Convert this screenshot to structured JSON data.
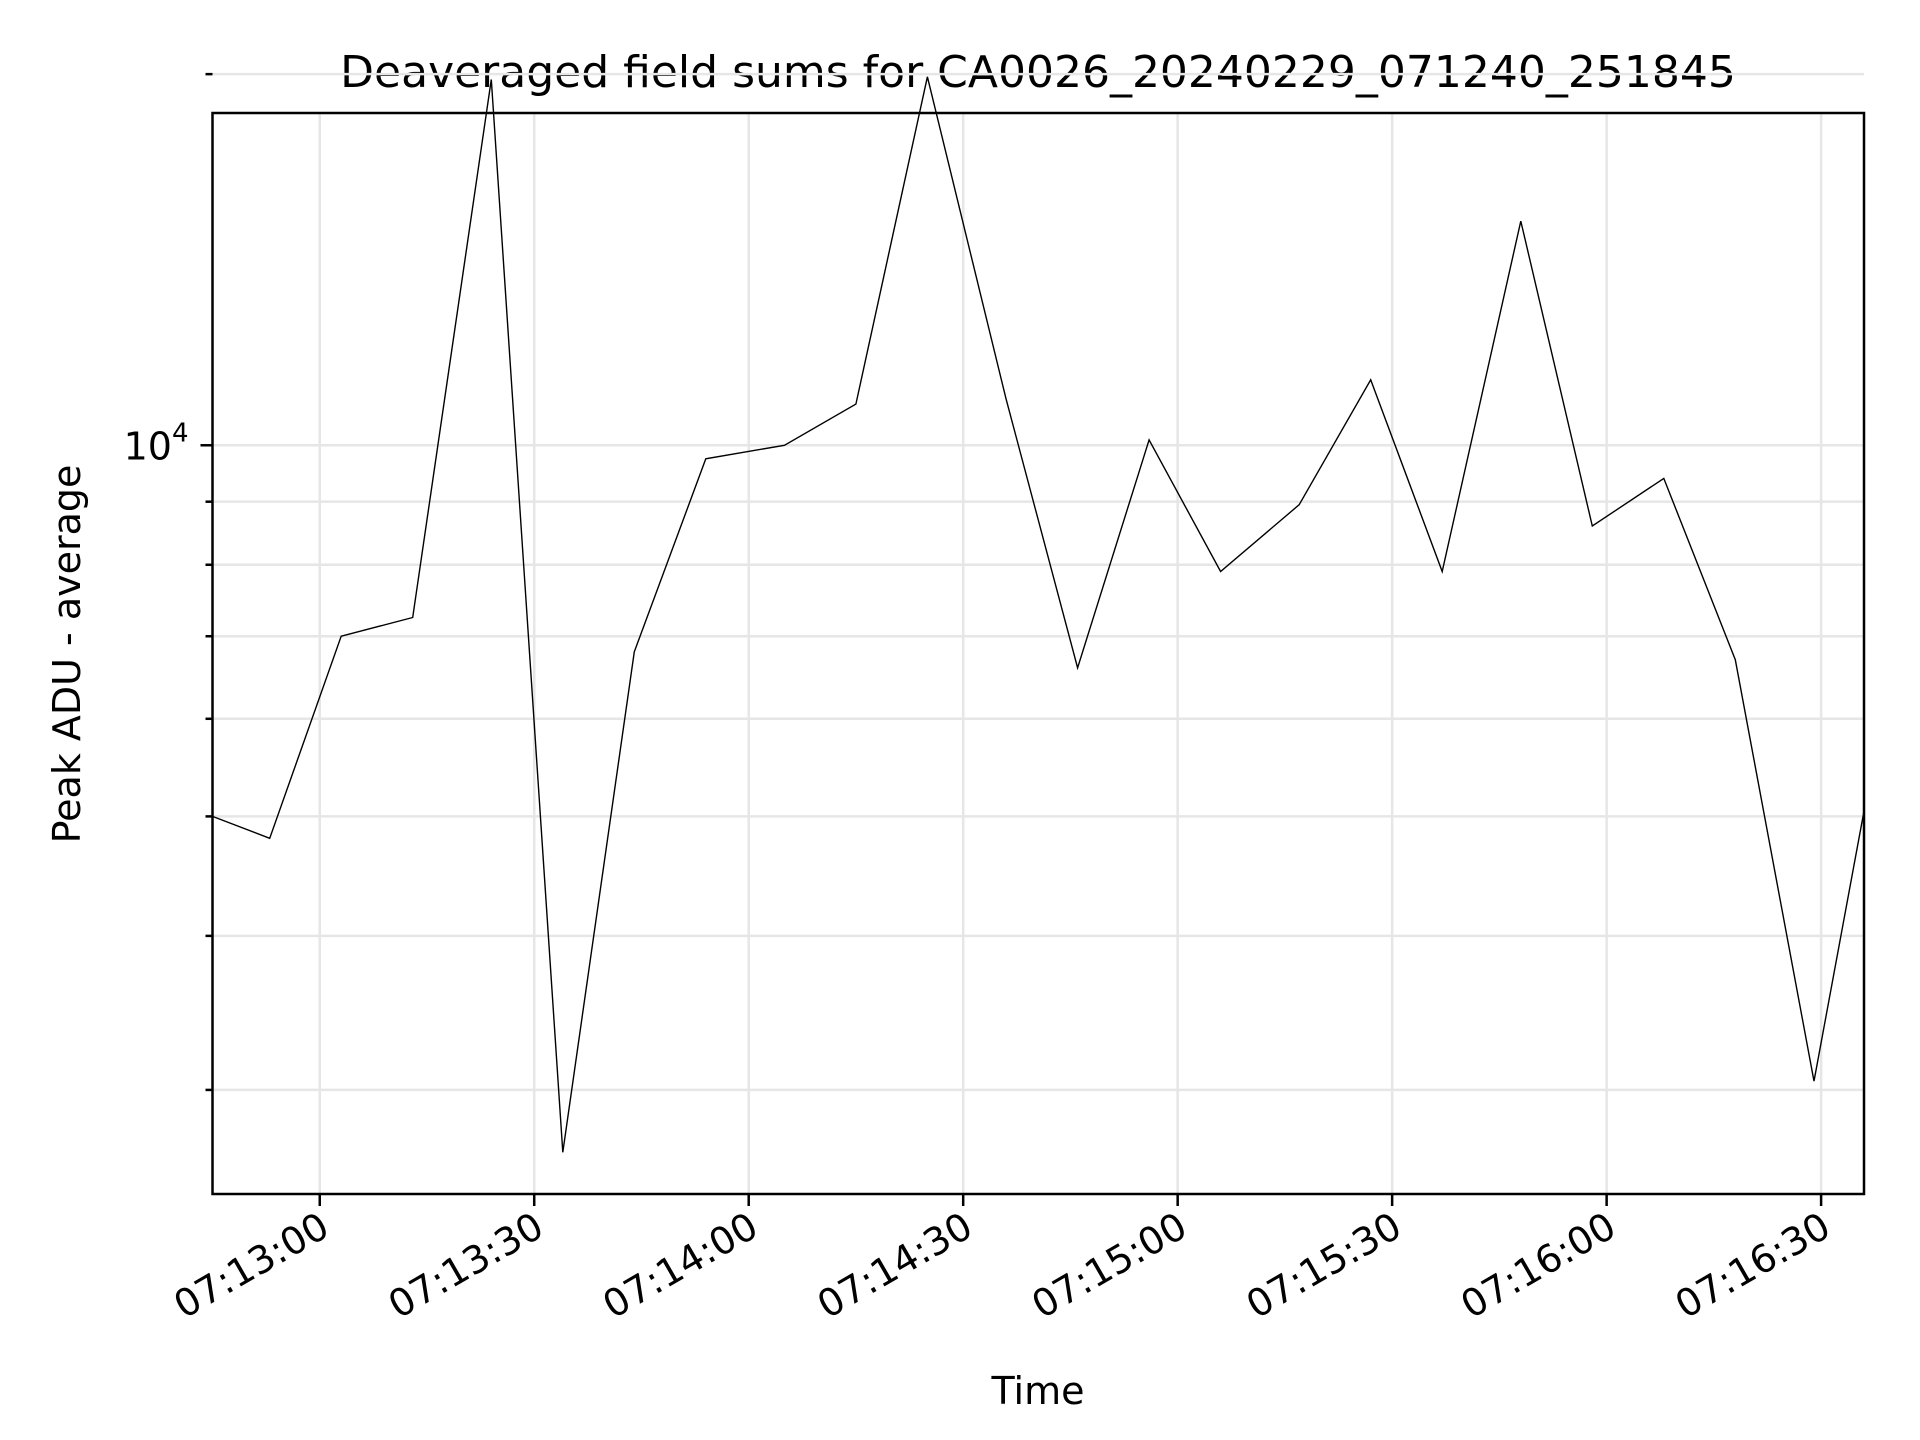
{
  "chart_data": {
    "type": "line",
    "title": "Deaveraged field sums for CA0026_20240229_071240_251845",
    "xlabel": "Time",
    "ylabel": "Peak ADU - average",
    "yscale": "log",
    "grid": true,
    "xlim": [
      "07:12:45",
      "07:16:36"
    ],
    "ylim": [
      2470,
      18600
    ],
    "x_ticks": [
      "07:13:00",
      "07:13:30",
      "07:14:00",
      "07:14:30",
      "07:15:00",
      "07:15:30",
      "07:16:00",
      "07:16:30"
    ],
    "y_major_ticks": [
      {
        "value": 10000,
        "base": "10",
        "exp": "4"
      }
    ],
    "y_minor_ticks": [
      3000,
      4000,
      5000,
      6000,
      7000,
      8000,
      9000,
      20000
    ],
    "series": [
      {
        "color": "#000000",
        "x": [
          "07:12:45",
          "07:12:53",
          "07:13:03",
          "07:13:13",
          "07:13:24",
          "07:13:34",
          "07:13:44",
          "07:13:54",
          "07:14:05",
          "07:14:15",
          "07:14:25",
          "07:14:36",
          "07:14:46",
          "07:14:56",
          "07:15:06",
          "07:15:17",
          "07:15:27",
          "07:15:37",
          "07:15:48",
          "07:15:58",
          "07:16:08",
          "07:16:18",
          "07:16:29",
          "07:16:36"
        ],
        "y": [
          5000,
          4800,
          7000,
          7250,
          19800,
          2670,
          6800,
          9750,
          10000,
          10800,
          19900,
          10900,
          6600,
          10100,
          7900,
          8950,
          11300,
          7900,
          15200,
          8600,
          9400,
          6700,
          3050,
          5050
        ]
      }
    ]
  }
}
